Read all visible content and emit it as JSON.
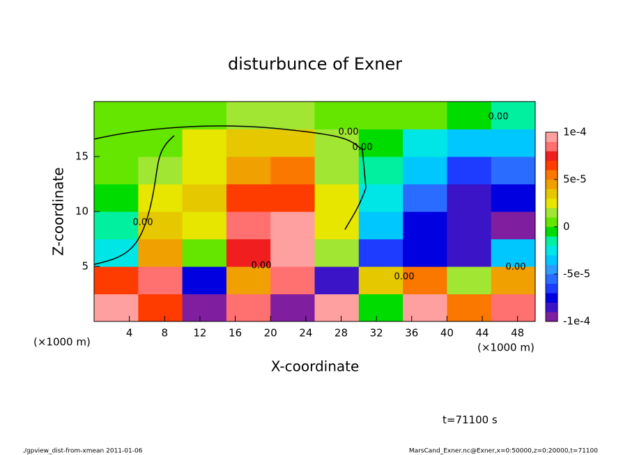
{
  "chart_data": {
    "type": "contour",
    "title": "disturbunce of Exner",
    "x_label": "X-coordinate",
    "y_label": "Z-coordinate",
    "x_units": "(×1000 m)",
    "y_units": "(×1000 m)",
    "time_label": "t=71100 s",
    "footer_left": "./gpview_dist-from-xmean  2011-01-06",
    "footer_right": "MarsCand_Exner.nc@Exner,x=0:50000,z=0:20000,t=71100",
    "contour_labels": [
      "0.00",
      "0.00",
      "0.00",
      "0.00",
      "0.00",
      "0.00",
      "0.00"
    ],
    "xlim": [
      0,
      50
    ],
    "ylim": [
      0,
      20
    ],
    "xticks": [
      4,
      8,
      12,
      16,
      20,
      24,
      28,
      32,
      36,
      40,
      44,
      48
    ],
    "yticks": [
      5,
      10,
      15
    ],
    "x": [
      2.5,
      7.5,
      12.5,
      17.5,
      22.5,
      27.5,
      32.5,
      37.5,
      42.5,
      47.5
    ],
    "z": [
      1.25,
      3.75,
      6.25,
      8.75,
      11.25,
      13.75,
      16.25,
      18.75
    ],
    "values": [
      [
        0.0001,
        7e-05,
        -9e-05,
        9e-05,
        -9e-05,
        0.0001,
        0,
        0.0001,
        6e-05,
        9e-05
      ],
      [
        7e-05,
        9e-05,
        -7e-05,
        5e-05,
        9e-05,
        -8e-05,
        4e-05,
        6e-05,
        2e-05,
        5e-05
      ],
      [
        -2e-05,
        5e-05,
        1e-05,
        8e-05,
        0.0001,
        2e-05,
        -6e-05,
        -7e-05,
        -8e-05,
        -3e-05
      ],
      [
        -1e-05,
        4e-05,
        3e-05,
        9e-05,
        0.0001,
        3e-05,
        -3e-05,
        -7e-05,
        -8e-05,
        -9e-05
      ],
      [
        0,
        3e-05,
        4e-05,
        7e-05,
        7e-05,
        3e-05,
        -2e-05,
        -5e-05,
        -8e-05,
        -7e-05
      ],
      [
        5e-06,
        2e-05,
        3e-05,
        5e-05,
        6e-05,
        2e-05,
        -1e-05,
        -3e-05,
        -6e-05,
        -5e-05
      ],
      [
        1e-05,
        1e-05,
        3e-05,
        4e-05,
        4e-05,
        2e-05,
        0,
        -2e-05,
        -3e-05,
        -3e-05
      ],
      [
        1e-05,
        1e-05,
        1e-05,
        2e-05,
        2e-05,
        1e-05,
        1e-05,
        5e-06,
        0,
        -1e-05
      ]
    ],
    "colorbar": {
      "levels": [
        -0.0001,
        -9e-05,
        -8e-05,
        -7e-05,
        -6e-05,
        -5e-05,
        -4e-05,
        -3e-05,
        -2e-05,
        -1e-05,
        0,
        1e-05,
        2e-05,
        3e-05,
        4e-05,
        5e-05,
        6e-05,
        7e-05,
        8e-05,
        9e-05,
        0.0001
      ],
      "colors": [
        "#7f1fa0",
        "#3c14c8",
        "#0000e0",
        "#1e3cff",
        "#2a6cff",
        "#2c9cff",
        "#00c8ff",
        "#00e6e6",
        "#00f0a0",
        "#00dc00",
        "#64e600",
        "#a0e632",
        "#e6e600",
        "#e6c800",
        "#f0a000",
        "#fa7800",
        "#ff3c00",
        "#f01e1e",
        "#ff7070",
        "#ffa0a0"
      ],
      "ticks": [
        {
          "value": 0.0001,
          "label": "1e-4"
        },
        {
          "value": 5e-05,
          "label": "5e-5"
        },
        0,
        {
          "value": -5e-05,
          "label": "-5e-5"
        },
        {
          "value": -0.0001,
          "label": "-1e-4"
        }
      ]
    }
  }
}
